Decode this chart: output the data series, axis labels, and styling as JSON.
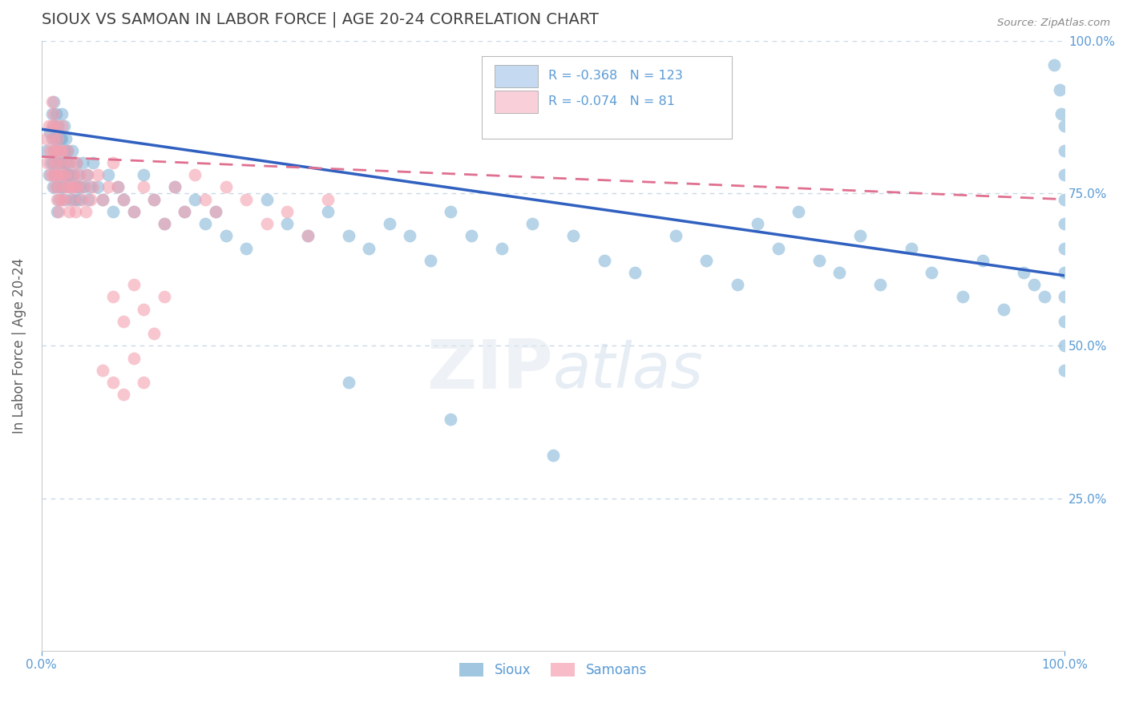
{
  "title": "SIOUX VS SAMOAN IN LABOR FORCE | AGE 20-24 CORRELATION CHART",
  "source_text": "Source: ZipAtlas.com",
  "ylabel": "In Labor Force | Age 20-24",
  "xlim": [
    0.0,
    1.0
  ],
  "ylim": [
    0.0,
    1.0
  ],
  "sioux_R": -0.368,
  "sioux_N": 123,
  "samoan_R": -0.074,
  "samoan_N": 81,
  "sioux_color": "#7ab0d4",
  "samoan_color": "#f4a0b0",
  "sioux_line_color": "#3060c0",
  "samoan_line_color": "#e07090",
  "title_color": "#404040",
  "axis_color": "#5b9bd5",
  "grid_color": "#c8d8e8",
  "background_color": "#ffffff",
  "legend_box_sioux_color": "#c5d9f0",
  "legend_box_samoan_color": "#f9d0da",
  "sioux_x": [
    0.005,
    0.007,
    0.008,
    0.009,
    0.01,
    0.01,
    0.011,
    0.011,
    0.012,
    0.012,
    0.013,
    0.013,
    0.014,
    0.014,
    0.015,
    0.015,
    0.015,
    0.016,
    0.016,
    0.017,
    0.017,
    0.018,
    0.018,
    0.019,
    0.02,
    0.02,
    0.021,
    0.021,
    0.022,
    0.022,
    0.023,
    0.023,
    0.024,
    0.024,
    0.025,
    0.025,
    0.026,
    0.027,
    0.028,
    0.029,
    0.03,
    0.031,
    0.032,
    0.033,
    0.034,
    0.035,
    0.036,
    0.037,
    0.038,
    0.04,
    0.042,
    0.044,
    0.046,
    0.048,
    0.05,
    0.055,
    0.06,
    0.065,
    0.07,
    0.075,
    0.08,
    0.09,
    0.1,
    0.11,
    0.12,
    0.13,
    0.14,
    0.15,
    0.16,
    0.17,
    0.18,
    0.2,
    0.22,
    0.24,
    0.26,
    0.28,
    0.3,
    0.32,
    0.34,
    0.36,
    0.38,
    0.4,
    0.42,
    0.45,
    0.48,
    0.52,
    0.55,
    0.58,
    0.62,
    0.65,
    0.68,
    0.7,
    0.72,
    0.74,
    0.76,
    0.78,
    0.8,
    0.82,
    0.85,
    0.87,
    0.9,
    0.92,
    0.94,
    0.96,
    0.97,
    0.98,
    0.99,
    0.995,
    0.997,
    1.0,
    1.0,
    1.0,
    1.0,
    1.0,
    1.0,
    1.0,
    1.0,
    1.0,
    1.0,
    1.0,
    0.3,
    0.4,
    0.5
  ],
  "sioux_y": [
    0.82,
    0.78,
    0.85,
    0.8,
    0.88,
    0.84,
    0.8,
    0.76,
    0.9,
    0.86,
    0.82,
    0.78,
    0.88,
    0.84,
    0.8,
    0.76,
    0.72,
    0.86,
    0.82,
    0.78,
    0.74,
    0.84,
    0.8,
    0.76,
    0.88,
    0.84,
    0.8,
    0.76,
    0.86,
    0.82,
    0.78,
    0.74,
    0.84,
    0.8,
    0.82,
    0.78,
    0.8,
    0.76,
    0.78,
    0.74,
    0.82,
    0.78,
    0.76,
    0.74,
    0.8,
    0.76,
    0.78,
    0.74,
    0.76,
    0.8,
    0.76,
    0.78,
    0.74,
    0.76,
    0.8,
    0.76,
    0.74,
    0.78,
    0.72,
    0.76,
    0.74,
    0.72,
    0.78,
    0.74,
    0.7,
    0.76,
    0.72,
    0.74,
    0.7,
    0.72,
    0.68,
    0.66,
    0.74,
    0.7,
    0.68,
    0.72,
    0.68,
    0.66,
    0.7,
    0.68,
    0.64,
    0.72,
    0.68,
    0.66,
    0.7,
    0.68,
    0.64,
    0.62,
    0.68,
    0.64,
    0.6,
    0.7,
    0.66,
    0.72,
    0.64,
    0.62,
    0.68,
    0.6,
    0.66,
    0.62,
    0.58,
    0.64,
    0.56,
    0.62,
    0.6,
    0.58,
    0.96,
    0.92,
    0.88,
    0.86,
    0.82,
    0.78,
    0.74,
    0.7,
    0.66,
    0.62,
    0.58,
    0.54,
    0.5,
    0.46,
    0.44,
    0.38,
    0.32
  ],
  "samoan_x": [
    0.005,
    0.006,
    0.007,
    0.008,
    0.009,
    0.01,
    0.01,
    0.011,
    0.011,
    0.012,
    0.012,
    0.013,
    0.013,
    0.014,
    0.014,
    0.015,
    0.015,
    0.016,
    0.016,
    0.017,
    0.017,
    0.018,
    0.018,
    0.019,
    0.02,
    0.02,
    0.021,
    0.021,
    0.022,
    0.023,
    0.024,
    0.025,
    0.026,
    0.027,
    0.028,
    0.029,
    0.03,
    0.031,
    0.032,
    0.033,
    0.034,
    0.035,
    0.037,
    0.039,
    0.041,
    0.043,
    0.045,
    0.048,
    0.05,
    0.055,
    0.06,
    0.065,
    0.07,
    0.075,
    0.08,
    0.09,
    0.1,
    0.11,
    0.12,
    0.13,
    0.14,
    0.15,
    0.16,
    0.17,
    0.18,
    0.2,
    0.22,
    0.24,
    0.26,
    0.28,
    0.07,
    0.08,
    0.09,
    0.1,
    0.11,
    0.12,
    0.06,
    0.07,
    0.08,
    0.09,
    0.1
  ],
  "samoan_y": [
    0.84,
    0.8,
    0.86,
    0.82,
    0.78,
    0.9,
    0.86,
    0.82,
    0.78,
    0.88,
    0.84,
    0.8,
    0.76,
    0.86,
    0.82,
    0.78,
    0.74,
    0.84,
    0.8,
    0.76,
    0.72,
    0.82,
    0.78,
    0.74,
    0.86,
    0.82,
    0.78,
    0.74,
    0.8,
    0.76,
    0.78,
    0.82,
    0.76,
    0.72,
    0.8,
    0.76,
    0.74,
    0.78,
    0.76,
    0.72,
    0.8,
    0.76,
    0.78,
    0.74,
    0.76,
    0.72,
    0.78,
    0.74,
    0.76,
    0.78,
    0.74,
    0.76,
    0.8,
    0.76,
    0.74,
    0.72,
    0.76,
    0.74,
    0.7,
    0.76,
    0.72,
    0.78,
    0.74,
    0.72,
    0.76,
    0.74,
    0.7,
    0.72,
    0.68,
    0.74,
    0.58,
    0.54,
    0.6,
    0.56,
    0.52,
    0.58,
    0.46,
    0.44,
    0.42,
    0.48,
    0.44
  ]
}
